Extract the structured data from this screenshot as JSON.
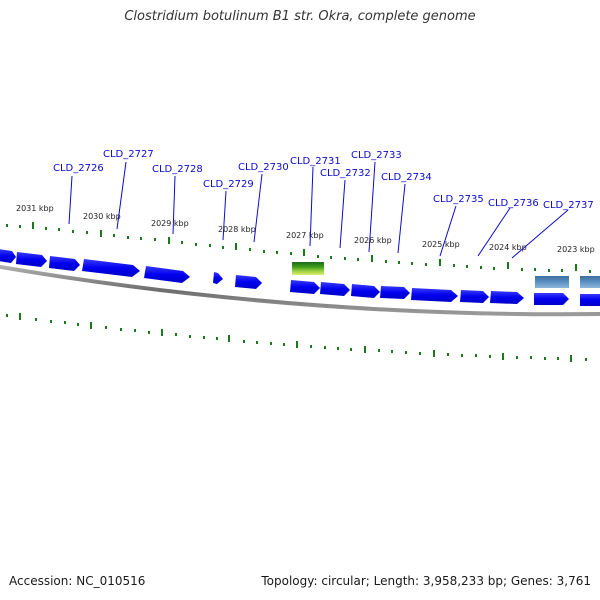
{
  "title": "Clostridium botulinum B1 str. Okra, complete genome",
  "footer": {
    "accession_label": "Accession: NC_010516",
    "summary": "Topology: circular; Length: 3,958,233 bp; Genes: 3,761"
  },
  "colors": {
    "gene_forward": "#0000ff",
    "gene_highlight": "#3a9a1a",
    "gene_other": "#4f86c0",
    "tick": "#1a7a1a",
    "label": "#0b0bd0",
    "backbone": "#7a7a7a"
  },
  "ticks": [
    {
      "label": "2031 kbp"
    },
    {
      "label": "2030 kbp"
    },
    {
      "label": "2029 kbp"
    },
    {
      "label": "2028 kbp"
    },
    {
      "label": "2027 kbp"
    },
    {
      "label": "2026 kbp"
    },
    {
      "label": "2025 kbp"
    },
    {
      "label": "2024 kbp"
    },
    {
      "label": "2023 kbp"
    }
  ],
  "gene_labels": [
    {
      "name": "CLD_2726"
    },
    {
      "name": "CLD_2727"
    },
    {
      "name": "CLD_2728"
    },
    {
      "name": "CLD_2729"
    },
    {
      "name": "CLD_2730"
    },
    {
      "name": "CLD_2731"
    },
    {
      "name": "CLD_2732"
    },
    {
      "name": "CLD_2733"
    },
    {
      "name": "CLD_2734"
    },
    {
      "name": "CLD_2735"
    },
    {
      "name": "CLD_2736"
    },
    {
      "name": "CLD_2737"
    }
  ]
}
